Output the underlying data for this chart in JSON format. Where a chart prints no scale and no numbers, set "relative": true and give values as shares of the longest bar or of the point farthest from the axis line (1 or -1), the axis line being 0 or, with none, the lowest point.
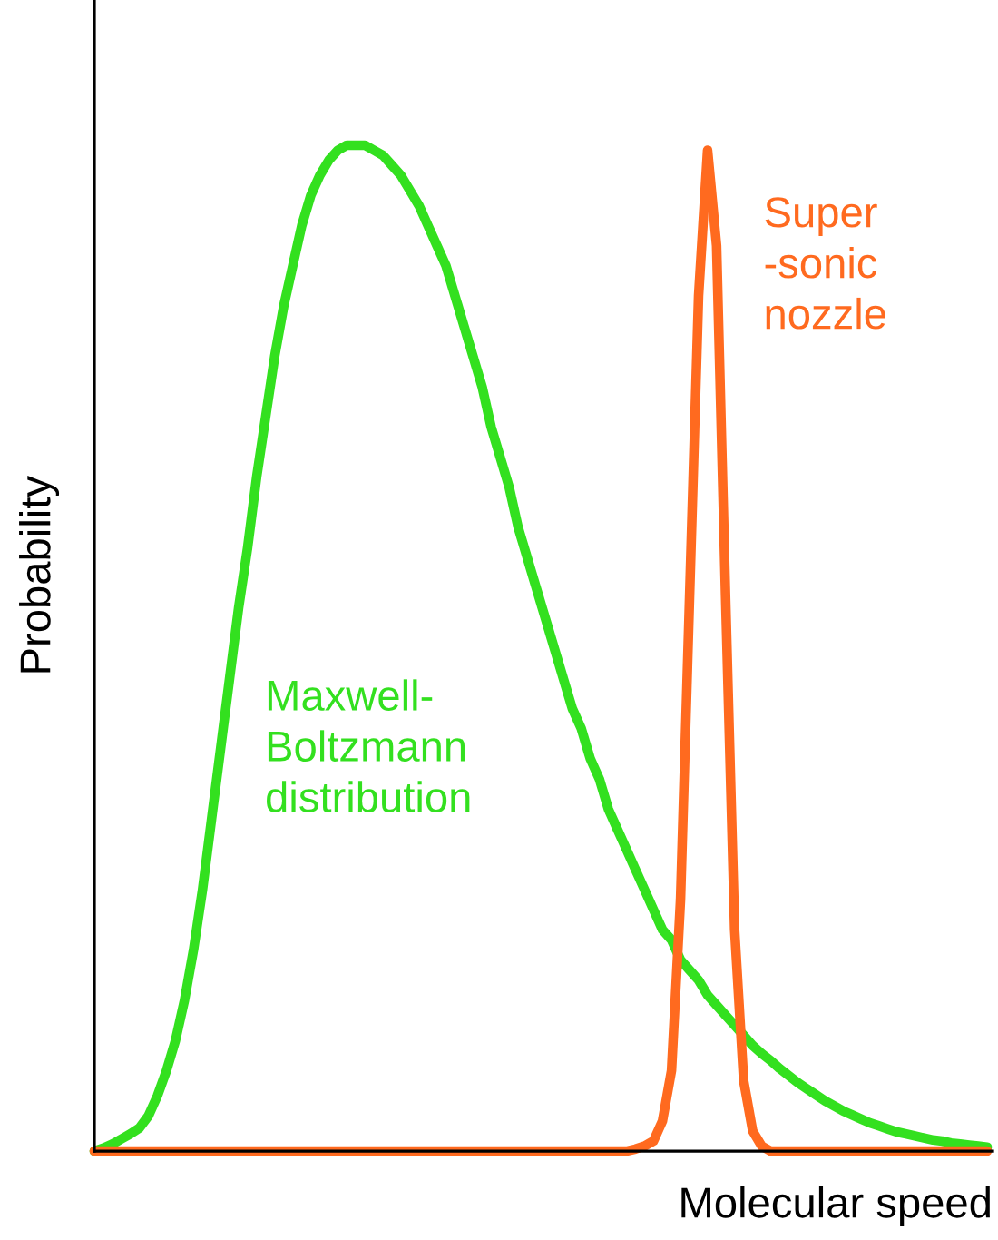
{
  "chart_data": {
    "type": "line",
    "relative": true,
    "xlabel": "Molecular speed",
    "ylabel": "Probability",
    "legend": false,
    "marker": "none",
    "line_style": "solid",
    "categories": [
      null,
      null,
      null,
      null,
      null,
      null,
      null,
      null,
      null,
      null,
      null,
      null,
      null,
      null,
      null,
      null,
      null,
      null,
      null,
      null,
      null,
      null,
      null,
      null,
      null,
      null,
      null,
      null,
      null,
      null,
      null,
      null,
      null,
      null,
      null,
      null,
      null,
      null,
      null,
      null,
      null,
      null,
      null,
      null,
      null,
      null,
      null,
      null,
      null,
      null,
      null,
      null,
      null,
      null,
      null,
      null,
      null,
      null,
      null,
      null,
      null,
      null,
      null,
      null,
      null,
      null,
      null,
      null,
      null,
      null,
      null,
      null,
      null,
      null,
      null,
      null,
      null,
      null,
      null,
      null,
      null,
      null,
      null,
      null,
      null,
      null,
      null,
      null,
      null,
      null,
      null,
      null,
      null,
      null,
      null,
      null,
      null,
      null,
      null,
      null
    ],
    "series": [
      {
        "name": "Maxwell-\nBoltzmann\ndistribution",
        "color": "#33e01f",
        "values": [
          0,
          0.003,
          0.007,
          0.012,
          0.017,
          0.023,
          0.035,
          0.055,
          0.08,
          0.11,
          0.15,
          0.2,
          0.26,
          0.33,
          0.4,
          0.47,
          0.54,
          0.6,
          0.67,
          0.73,
          0.79,
          0.84,
          0.88,
          0.92,
          0.95,
          0.97,
          0.985,
          0.995,
          1,
          1,
          1,
          0.995,
          0.99,
          0.98,
          0.97,
          0.955,
          0.94,
          0.92,
          0.9,
          0.88,
          0.85,
          0.82,
          0.79,
          0.76,
          0.72,
          0.69,
          0.66,
          0.62,
          0.59,
          0.56,
          0.53,
          0.5,
          0.47,
          0.44,
          0.42,
          0.39,
          0.37,
          0.34,
          0.32,
          0.3,
          0.28,
          0.26,
          0.24,
          0.22,
          0.21,
          0.19,
          0.18,
          0.17,
          0.155,
          0.145,
          0.135,
          0.125,
          0.115,
          0.105,
          0.097,
          0.09,
          0.082,
          0.075,
          0.068,
          0.062,
          0.056,
          0.05,
          0.045,
          0.04,
          0.036,
          0.032,
          0.028,
          0.025,
          0.022,
          0.019,
          0.017,
          0.015,
          0.013,
          0.011,
          0.01,
          0.008,
          0.007,
          0.006,
          0.005,
          0.004
        ]
      },
      {
        "name": "Super\n-sonic\nnozzle",
        "color": "#ff6a1f",
        "values": [
          0,
          0,
          0,
          0,
          0,
          0,
          0,
          0,
          0,
          0,
          0,
          0,
          0,
          0,
          0,
          0,
          0,
          0,
          0,
          0,
          0,
          0,
          0,
          0,
          0,
          0,
          0,
          0,
          0,
          0,
          0,
          0,
          0,
          0,
          0,
          0,
          0,
          0,
          0,
          0,
          0,
          0,
          0,
          0,
          0,
          0,
          0,
          0,
          0,
          0,
          0,
          0,
          0,
          0,
          0,
          0,
          0,
          0,
          0,
          0,
          0.002,
          0.005,
          0.01,
          0.03,
          0.08,
          0.25,
          0.55,
          0.85,
          0.995,
          0.9,
          0.55,
          0.22,
          0.07,
          0.02,
          0.005,
          0,
          0,
          0,
          0,
          0,
          0,
          0,
          0,
          0,
          0,
          0,
          0,
          0,
          0,
          0,
          0,
          0,
          0,
          0,
          0,
          0,
          0,
          0,
          0,
          0
        ]
      }
    ]
  }
}
